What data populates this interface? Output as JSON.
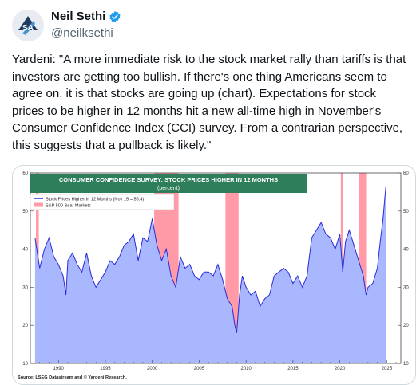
{
  "author": {
    "name": "Neil Sethi",
    "handle": "@neilksethi",
    "verified": true,
    "avatar_icon": "logo-avatar-icon"
  },
  "tweet": {
    "text": "Yardeni: \"A more immediate risk to the stock market rally than tariffs is that investors are getting too bullish. If there's one thing Americans seem to agree on, it is that stocks are going up (chart). Expectations for stock prices to be higher in 12 months hit a new all-time high in November's Consumer Confidence Index (CCI) survey. From a contrarian perspective, this suggests that a pullback is likely.\""
  },
  "colors": {
    "accent": "#1d9bf0",
    "title_bar": "#2e7d5b",
    "series": "#2b2bd6",
    "area_fill": "#a9b7ff",
    "bear_fill": "#ff9aa6"
  },
  "chart_data": {
    "type": "line",
    "title": "CONSUMER CONFIDENCE SURVEY: STOCK PRICES HIGHER IN 12 MONTHS",
    "subtitle": "(percent)",
    "legend": [
      {
        "name": "Stock Prices Higher In 12 Months (Nov 15 = 56.4)",
        "kind": "series"
      },
      {
        "name": "S&P 500 Bear Markets",
        "kind": "shade"
      }
    ],
    "legend_placement": "top-left",
    "source": "Source: LSEG Datastream and © Yardeni Research.",
    "x_ticks": [
      "1990",
      "1995",
      "2000",
      "2005",
      "2010",
      "2015",
      "2020",
      "2025"
    ],
    "y_ticks": [
      10,
      20,
      30,
      40,
      50,
      60
    ],
    "xlim": [
      1987.0,
      2026.5
    ],
    "ylim": [
      10,
      60
    ],
    "bear_markets": [
      [
        1987.6,
        1987.9
      ],
      [
        2000.2,
        2002.8
      ],
      [
        2007.8,
        2009.2
      ],
      [
        2020.1,
        2020.3
      ],
      [
        2022.0,
        2022.8
      ]
    ],
    "series": [
      {
        "name": "Stock Prices Higher In 12 Months (Nov 15 = 56.4)",
        "x": [
          1987.5,
          1988.0,
          1988.5,
          1989.0,
          1989.5,
          1990.0,
          1990.5,
          1990.8,
          1991.0,
          1991.5,
          1992.0,
          1992.5,
          1993.0,
          1993.5,
          1994.0,
          1994.5,
          1995.0,
          1995.5,
          1996.0,
          1996.5,
          1997.0,
          1997.5,
          1998.0,
          1998.5,
          1999.0,
          1999.5,
          2000.0,
          2000.5,
          2001.0,
          2001.5,
          2002.0,
          2002.5,
          2003.0,
          2003.5,
          2004.0,
          2004.5,
          2005.0,
          2005.5,
          2006.0,
          2006.5,
          2007.0,
          2007.5,
          2008.0,
          2008.5,
          2008.8,
          2009.0,
          2009.3,
          2009.6,
          2010.0,
          2010.5,
          2011.0,
          2011.5,
          2012.0,
          2012.5,
          2013.0,
          2013.5,
          2014.0,
          2014.5,
          2015.0,
          2015.5,
          2016.0,
          2016.5,
          2017.0,
          2017.5,
          2018.0,
          2018.5,
          2019.0,
          2019.5,
          2020.0,
          2020.3,
          2020.6,
          2021.0,
          2021.5,
          2022.0,
          2022.5,
          2022.8,
          2023.0,
          2023.5,
          2024.0,
          2024.3,
          2024.6,
          2024.9
        ],
        "values": [
          43,
          35,
          40,
          43,
          38,
          36,
          33,
          28,
          37,
          39,
          36,
          34,
          39,
          33,
          30,
          32,
          34,
          37,
          36,
          38,
          41,
          42,
          44,
          37,
          43,
          42,
          48,
          41,
          37,
          40,
          33,
          30,
          38,
          35,
          36,
          33,
          32,
          34,
          34,
          33,
          36,
          32,
          27,
          25,
          20,
          18,
          28,
          33,
          30,
          28,
          29,
          25,
          27,
          28,
          33,
          34,
          35,
          34,
          31,
          33,
          30,
          33,
          43,
          45,
          47,
          44,
          43,
          40,
          44,
          34,
          42,
          45,
          41,
          37,
          33,
          28,
          30,
          31,
          35,
          42,
          48,
          56.4
        ]
      }
    ]
  }
}
